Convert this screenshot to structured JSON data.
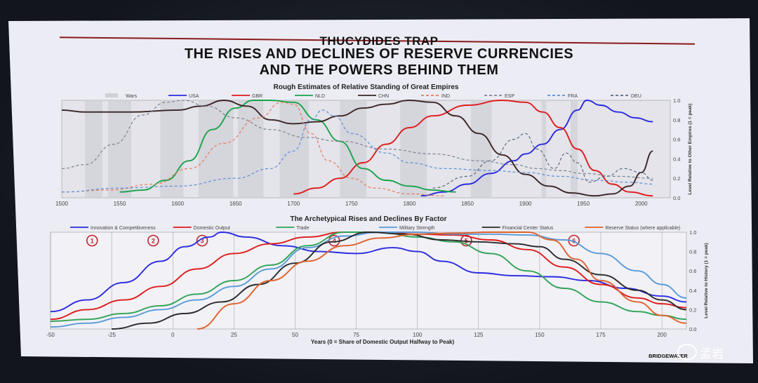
{
  "slide": {
    "title_1": "THUCYDIDES TRAP",
    "title_2": "THE RISES AND DECLINES OF RESERVE CURRENCIES",
    "title_3": "AND THE POWERS BEHIND THEM",
    "brand": "BRIDGEWATER",
    "watermark": "孟岩"
  },
  "chart_data": [
    {
      "type": "line",
      "title": "Rough Estimates of Relative Standing of Great Empires",
      "ylabel": "Level Relative to Other Empires (1 = peak)",
      "xlim": [
        1500,
        2025
      ],
      "ylim": [
        0,
        1.0
      ],
      "x_ticks": [
        1500,
        1550,
        1600,
        1650,
        1700,
        1750,
        1800,
        1850,
        1900,
        1950,
        2000
      ],
      "y_ticks": [
        0.0,
        0.2,
        0.4,
        0.6,
        0.8,
        1.0
      ],
      "legend": [
        "Wars",
        "USA",
        "GBR",
        "NLD",
        "CHN",
        "IND",
        "ESP",
        "FRA",
        "DEU"
      ],
      "war_bands": [
        [
          1520,
          1535
        ],
        [
          1540,
          1560
        ],
        [
          1585,
          1605
        ],
        [
          1618,
          1648
        ],
        [
          1652,
          1674
        ],
        [
          1688,
          1713
        ],
        [
          1740,
          1763
        ],
        [
          1792,
          1815
        ],
        [
          1853,
          1871
        ],
        [
          1914,
          1918
        ],
        [
          1939,
          1945
        ]
      ],
      "series": [
        {
          "name": "USA",
          "color": "#2a2ae0",
          "dash": "",
          "x": [
            1810,
            1830,
            1850,
            1870,
            1890,
            1900,
            1915,
            1930,
            1945,
            1953,
            1965,
            1980,
            1995,
            2010
          ],
          "y": [
            0.02,
            0.06,
            0.14,
            0.25,
            0.38,
            0.45,
            0.55,
            0.7,
            0.9,
            1.0,
            0.95,
            0.88,
            0.82,
            0.78
          ]
        },
        {
          "name": "GBR",
          "color": "#e01a1a",
          "dash": "",
          "x": [
            1700,
            1720,
            1740,
            1760,
            1780,
            1800,
            1820,
            1850,
            1880,
            1900,
            1915,
            1930,
            1945,
            1960,
            1975,
            1990,
            2010
          ],
          "y": [
            0.04,
            0.1,
            0.2,
            0.36,
            0.55,
            0.72,
            0.84,
            0.95,
            1.0,
            0.98,
            0.88,
            0.72,
            0.5,
            0.28,
            0.14,
            0.06,
            0.02
          ]
        },
        {
          "name": "NLD",
          "color": "#1aa34a",
          "dash": "",
          "x": [
            1550,
            1570,
            1590,
            1610,
            1630,
            1650,
            1665,
            1680,
            1700,
            1720,
            1740,
            1760,
            1780,
            1800,
            1820,
            1840
          ],
          "y": [
            0.06,
            0.08,
            0.18,
            0.38,
            0.7,
            0.92,
            1.0,
            1.0,
            0.98,
            0.8,
            0.58,
            0.3,
            0.18,
            0.12,
            0.08,
            0.06
          ]
        },
        {
          "name": "CHN",
          "color": "#3a2424",
          "dash": "",
          "x": [
            1500,
            1520,
            1560,
            1600,
            1620,
            1640,
            1660,
            1680,
            1700,
            1720,
            1740,
            1760,
            1780,
            1800,
            1820,
            1840,
            1860,
            1880,
            1900,
            1920,
            1940,
            1960,
            1975,
            1990,
            2000,
            2010
          ],
          "y": [
            0.9,
            0.88,
            0.88,
            0.9,
            0.94,
            1.0,
            0.94,
            0.8,
            0.76,
            0.78,
            0.84,
            0.92,
            0.96,
            1.0,
            0.98,
            0.84,
            0.66,
            0.44,
            0.24,
            0.12,
            0.05,
            0.02,
            0.04,
            0.12,
            0.26,
            0.48
          ]
        },
        {
          "name": "IND",
          "color": "#e87a5a",
          "dash": "4,3",
          "x": [
            1500,
            1540,
            1580,
            1610,
            1640,
            1670,
            1690,
            1700,
            1715,
            1730,
            1750,
            1770,
            1800,
            1830
          ],
          "y": [
            0.06,
            0.08,
            0.14,
            0.3,
            0.56,
            0.82,
            0.98,
            0.96,
            0.66,
            0.38,
            0.2,
            0.1,
            0.04,
            0.02
          ]
        },
        {
          "name": "ESP",
          "color": "#7a8494",
          "dash": "4,3",
          "x": [
            1500,
            1520,
            1545,
            1570,
            1590,
            1605,
            1625,
            1650,
            1680,
            1710,
            1740,
            1780,
            1820,
            1860,
            1890,
            1910,
            1930,
            1950,
            1980,
            2010
          ],
          "y": [
            0.3,
            0.34,
            0.55,
            0.85,
            0.98,
            1.0,
            0.94,
            0.82,
            0.7,
            0.62,
            0.58,
            0.5,
            0.45,
            0.38,
            0.34,
            0.3,
            0.28,
            0.25,
            0.22,
            0.2
          ]
        },
        {
          "name": "FRA",
          "color": "#5a8ed6",
          "dash": "4,3",
          "x": [
            1500,
            1550,
            1600,
            1650,
            1680,
            1700,
            1715,
            1725,
            1735,
            1750,
            1780,
            1800,
            1830,
            1870,
            1900,
            1930,
            1960,
            1990,
            2010
          ],
          "y": [
            0.06,
            0.1,
            0.12,
            0.2,
            0.3,
            0.48,
            0.8,
            0.9,
            0.84,
            0.66,
            0.46,
            0.36,
            0.3,
            0.28,
            0.26,
            0.22,
            0.18,
            0.16,
            0.14
          ]
        },
        {
          "name": "DEU",
          "color": "#5a6a80",
          "dash": "4,3",
          "x": [
            1820,
            1850,
            1870,
            1890,
            1900,
            1910,
            1925,
            1935,
            1945,
            1955,
            1970,
            1985,
            2000,
            2010
          ],
          "y": [
            0.1,
            0.22,
            0.38,
            0.6,
            0.66,
            0.5,
            0.3,
            0.46,
            0.36,
            0.16,
            0.22,
            0.3,
            0.26,
            0.18
          ]
        }
      ]
    },
    {
      "type": "line",
      "title": "The Archetypical Rises and Declines By Factor",
      "xlabel": "Years (0 = Share of Domestic Output Halfway to Peak)",
      "ylabel": "Level Relative to History (1 = peak)",
      "xlim": [
        -50,
        210
      ],
      "ylim": [
        0,
        1.0
      ],
      "x_ticks": [
        -50,
        -25,
        0,
        25,
        50,
        75,
        100,
        125,
        150,
        175,
        200
      ],
      "y_ticks": [
        0.0,
        0.2,
        0.4,
        0.6,
        0.8,
        1.0
      ],
      "legend": [
        "Innovation & Competitiveness",
        "Domestic Output",
        "Trade",
        "Military Strength",
        "Financial Center Status",
        "Reserve Status (where applicable)"
      ],
      "phase_markers": [
        {
          "label": "1",
          "x": -33
        },
        {
          "label": "2",
          "x": -8
        },
        {
          "label": "3",
          "x": 12
        },
        {
          "label": "4",
          "x": 66
        },
        {
          "label": "5",
          "x": 120
        },
        {
          "label": "6",
          "x": 164
        }
      ],
      "series": [
        {
          "name": "Innovation & Competitiveness",
          "color": "#2a2ae0",
          "x": [
            -50,
            -35,
            -20,
            -5,
            5,
            15,
            20,
            30,
            45,
            60,
            75,
            90,
            100,
            110,
            125,
            140,
            155,
            170,
            185,
            200,
            210
          ],
          "y": [
            0.18,
            0.3,
            0.48,
            0.7,
            0.85,
            0.95,
            1.0,
            0.95,
            0.86,
            0.8,
            0.78,
            0.84,
            0.8,
            0.7,
            0.58,
            0.55,
            0.54,
            0.5,
            0.42,
            0.34,
            0.28
          ]
        },
        {
          "name": "Domestic Output",
          "color": "#e01a1a",
          "x": [
            -50,
            -35,
            -20,
            -5,
            10,
            25,
            40,
            55,
            70,
            85,
            100,
            115,
            130,
            145,
            160,
            175,
            190,
            200,
            210
          ],
          "y": [
            0.1,
            0.2,
            0.3,
            0.44,
            0.62,
            0.78,
            0.88,
            0.95,
            1.0,
            1.0,
            0.98,
            0.97,
            0.92,
            0.82,
            0.64,
            0.46,
            0.32,
            0.26,
            0.22
          ]
        },
        {
          "name": "Trade",
          "color": "#2fa356",
          "x": [
            -50,
            -35,
            -20,
            -5,
            10,
            25,
            40,
            55,
            70,
            85,
            100,
            115,
            130,
            145,
            160,
            175,
            190,
            200,
            210
          ],
          "y": [
            0.08,
            0.1,
            0.16,
            0.24,
            0.36,
            0.5,
            0.66,
            0.86,
            1.0,
            1.0,
            0.95,
            0.9,
            0.78,
            0.6,
            0.42,
            0.28,
            0.18,
            0.14,
            0.1
          ]
        },
        {
          "name": "Military Strength",
          "color": "#5a9ad6",
          "x": [
            -50,
            -35,
            -20,
            -5,
            10,
            25,
            40,
            55,
            70,
            85,
            100,
            115,
            130,
            145,
            160,
            175,
            190,
            200,
            210
          ],
          "y": [
            0.02,
            0.06,
            0.12,
            0.2,
            0.3,
            0.44,
            0.62,
            0.84,
            0.96,
            1.0,
            1.0,
            0.98,
            0.98,
            0.97,
            0.92,
            0.78,
            0.6,
            0.46,
            0.32
          ]
        },
        {
          "name": "Financial Center Status",
          "color": "#2a2a2a",
          "x": [
            -25,
            -10,
            5,
            20,
            35,
            50,
            65,
            80,
            95,
            110,
            125,
            140,
            150,
            160,
            175,
            190,
            200,
            210
          ],
          "y": [
            0.0,
            0.06,
            0.16,
            0.28,
            0.46,
            0.68,
            0.9,
            1.0,
            0.98,
            0.92,
            0.9,
            0.88,
            0.85,
            0.72,
            0.56,
            0.4,
            0.3,
            0.2
          ]
        },
        {
          "name": "Reserve Status (where applicable)",
          "color": "#e0602a",
          "x": [
            10,
            25,
            40,
            55,
            70,
            85,
            100,
            115,
            130,
            145,
            155,
            165,
            175,
            190,
            200,
            210
          ],
          "y": [
            0.0,
            0.26,
            0.5,
            0.7,
            0.86,
            0.94,
            0.98,
            0.99,
            1.0,
            1.0,
            0.92,
            0.72,
            0.5,
            0.28,
            0.14,
            0.06
          ]
        }
      ]
    }
  ]
}
